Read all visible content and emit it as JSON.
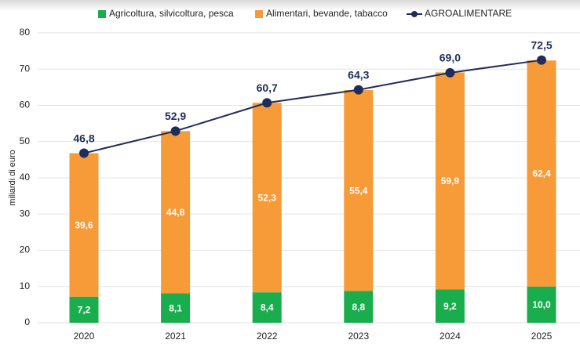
{
  "chart_data": {
    "type": "bar",
    "stacked": true,
    "categories": [
      "2020",
      "2021",
      "2022",
      "2023",
      "2024",
      "2025"
    ],
    "y_label": "miliardi di euro",
    "ylim": [
      0,
      80
    ],
    "yticks": [
      0,
      10,
      20,
      30,
      40,
      50,
      60,
      70,
      80
    ],
    "grid": true,
    "legend": "top",
    "series": [
      {
        "name": "Agricoltura, silvicoltura, pesca",
        "type": "bar",
        "color": "#1aad4e",
        "values": [
          7.2,
          8.1,
          8.4,
          8.8,
          9.2,
          10.0
        ],
        "value_labels": [
          "7,2",
          "8,1",
          "8,4",
          "8,8",
          "9,2",
          "10,0"
        ]
      },
      {
        "name": "Alimentari, bevande, tabacco",
        "type": "bar",
        "color": "#f79a38",
        "values": [
          39.6,
          44.8,
          52.3,
          55.4,
          59.9,
          62.4
        ],
        "value_labels": [
          "39,6",
          "44,8",
          "52,3",
          "55,4",
          "59,9",
          "62,4"
        ]
      },
      {
        "name": "AGROALIMENTARE",
        "type": "line",
        "color": "#1f2d5a",
        "values": [
          46.8,
          52.9,
          60.7,
          64.3,
          69.0,
          72.5
        ],
        "value_labels": [
          "46,8",
          "52,9",
          "60,7",
          "64,3",
          "69,0",
          "72,5"
        ]
      }
    ]
  }
}
